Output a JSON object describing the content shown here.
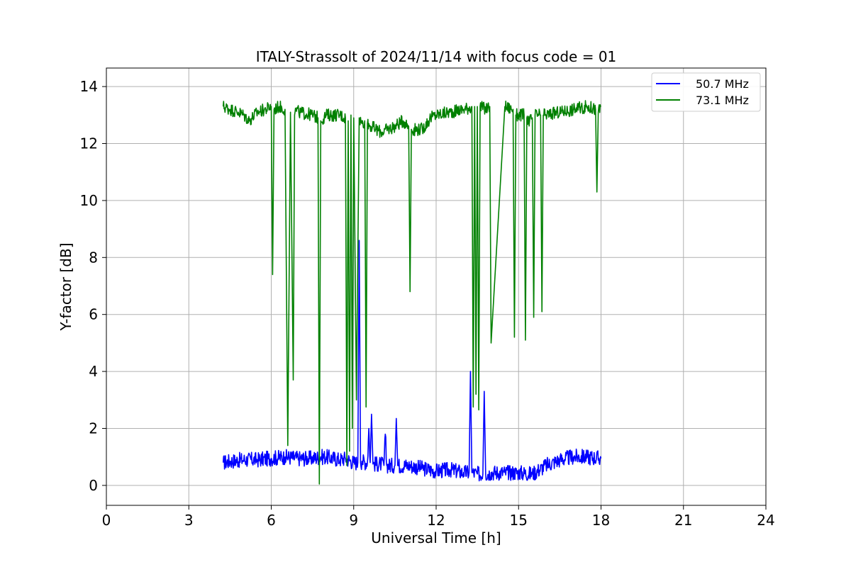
{
  "chart_data": {
    "type": "line",
    "title": "ITALY-Strassolt of 2024/11/14 with focus code = 01",
    "xlabel": "Universal Time [h]",
    "ylabel": "Y-factor [dB]",
    "xlim": [
      0,
      24
    ],
    "ylim": [
      -0.7,
      14.65
    ],
    "xticks": [
      0,
      3,
      6,
      9,
      12,
      15,
      18,
      21,
      24
    ],
    "yticks": [
      0,
      2,
      4,
      6,
      8,
      10,
      12,
      14
    ],
    "grid": true,
    "legend_position": "top-right",
    "series": [
      {
        "name": "50.7 MHz",
        "color": "#0000ff",
        "x": [
          4.25,
          4.5,
          5.0,
          5.5,
          6.0,
          6.5,
          7.0,
          7.5,
          7.8,
          8.0,
          8.5,
          8.7,
          9.0,
          9.15,
          9.2,
          9.25,
          9.3,
          9.5,
          9.55,
          9.6,
          9.65,
          9.7,
          10.0,
          10.1,
          10.15,
          10.2,
          10.5,
          10.55,
          10.6,
          11.0,
          11.5,
          12.0,
          12.5,
          13.0,
          13.2,
          13.25,
          13.3,
          13.5,
          13.7,
          13.75,
          13.8,
          14.0,
          14.5,
          15.0,
          15.5,
          16.0,
          16.5,
          17.0,
          17.5,
          18.0
        ],
        "y": [
          0.8,
          0.85,
          0.9,
          0.9,
          0.95,
          1.0,
          0.95,
          0.95,
          1.0,
          1.0,
          0.9,
          0.95,
          0.8,
          0.8,
          8.6,
          0.8,
          0.85,
          0.8,
          2.0,
          0.8,
          2.5,
          0.75,
          0.75,
          0.7,
          1.8,
          0.7,
          0.7,
          2.35,
          0.7,
          0.7,
          0.6,
          0.5,
          0.55,
          0.45,
          0.45,
          4.0,
          0.45,
          0.4,
          0.4,
          3.3,
          0.4,
          0.45,
          0.45,
          0.45,
          0.4,
          0.7,
          0.9,
          1.0,
          1.0,
          0.95
        ]
      },
      {
        "name": "73.1 MHz",
        "color": "#008000",
        "x": [
          4.25,
          4.5,
          4.8,
          5.0,
          5.2,
          5.5,
          5.8,
          6.0,
          6.05,
          6.1,
          6.3,
          6.5,
          6.6,
          6.7,
          6.8,
          6.85,
          6.9,
          7.0,
          7.5,
          7.7,
          7.75,
          7.8,
          8.0,
          8.5,
          8.7,
          8.75,
          8.8,
          8.85,
          8.9,
          8.95,
          9.0,
          9.1,
          9.2,
          9.3,
          9.4,
          9.45,
          9.5,
          9.8,
          10.0,
          10.5,
          10.8,
          11.0,
          11.05,
          11.1,
          11.5,
          11.8,
          12.0,
          12.5,
          13.0,
          13.3,
          13.35,
          13.4,
          13.45,
          13.5,
          13.55,
          13.6,
          13.8,
          13.95,
          14.0,
          14.5,
          14.8,
          14.85,
          14.9,
          15.0,
          15.2,
          15.25,
          15.3,
          15.4,
          15.5,
          15.55,
          15.6,
          15.8,
          15.85,
          15.9,
          16.0,
          16.5,
          17.0,
          17.5,
          17.8,
          17.85,
          17.9,
          18.0
        ],
        "y": [
          13.3,
          13.2,
          13.1,
          13.0,
          12.8,
          13.1,
          13.2,
          13.3,
          7.4,
          13.2,
          13.3,
          13.2,
          1.4,
          13.1,
          3.7,
          13.0,
          13.2,
          13.1,
          13.0,
          12.9,
          0.05,
          12.8,
          13.0,
          13.0,
          12.9,
          0.7,
          12.8,
          1.2,
          13.0,
          2.0,
          12.9,
          3.0,
          12.9,
          12.7,
          12.8,
          2.75,
          12.7,
          12.5,
          12.4,
          12.6,
          12.8,
          12.6,
          6.8,
          12.5,
          12.5,
          12.9,
          13.0,
          13.1,
          13.2,
          13.3,
          2.75,
          13.3,
          3.2,
          13.3,
          2.65,
          13.3,
          13.2,
          13.3,
          5.0,
          13.3,
          13.2,
          5.2,
          13.0,
          13.0,
          13.0,
          5.1,
          12.9,
          12.8,
          12.9,
          5.9,
          13.0,
          13.0,
          6.1,
          13.0,
          13.0,
          13.1,
          13.2,
          13.3,
          13.2,
          10.3,
          13.1,
          13.3
        ]
      }
    ]
  }
}
